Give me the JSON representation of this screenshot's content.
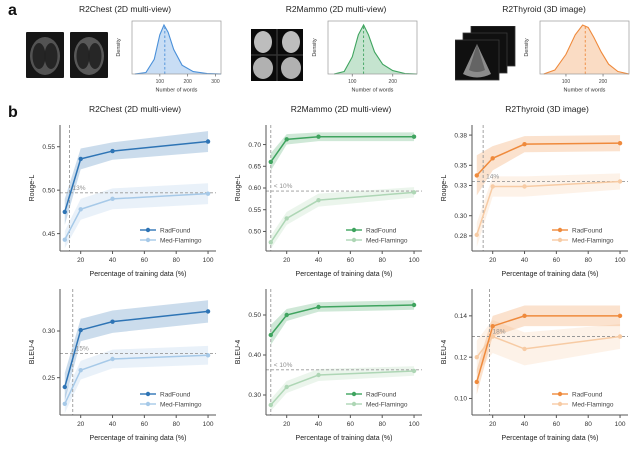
{
  "panel_labels": {
    "a": "a",
    "b": "b"
  },
  "datasets": [
    {
      "title": "R2Chest (2D multi-view)",
      "media_name": "chest-xray-thumbnails"
    },
    {
      "title": "R2Mammo (2D multi-view)",
      "media_name": "mammogram-thumbnail"
    },
    {
      "title": "R2Thyroid (3D image)",
      "media_name": "thyroid-scan-stack"
    }
  ],
  "colors": {
    "blue_dark": "#2e74b5",
    "blue_light": "#a6c9e8",
    "blue_density": "#4a90d9",
    "green_dark": "#3fa45f",
    "green_light": "#aed6b5",
    "green_density": "#3fa45f",
    "orange_dark": "#ef8a3c",
    "orange_light": "#f7cba4",
    "orange_density": "#ef8a3c",
    "ref_line": "#999999",
    "annotation": "#909090"
  },
  "chart_data": [
    {
      "id": "chest-words-density",
      "type": "area",
      "xlabel": "Number of words",
      "ylabel": "Density",
      "xlim": [
        0,
        320
      ],
      "xticks": [
        100,
        200,
        300
      ],
      "x": [
        10,
        50,
        80,
        100,
        115,
        130,
        150,
        180,
        220,
        270,
        320
      ],
      "density": [
        0,
        0.03,
        0.3,
        0.8,
        1.0,
        0.85,
        0.5,
        0.18,
        0.05,
        0.01,
        0
      ],
      "mean_line": 118,
      "color": "#4a90d9"
    },
    {
      "id": "mammo-words-density",
      "type": "area",
      "xlabel": "Number of words",
      "ylabel": "Density",
      "xlim": [
        40,
        260
      ],
      "xticks": [
        100,
        200
      ],
      "x": [
        55,
        80,
        100,
        115,
        128,
        140,
        155,
        175,
        200,
        230,
        260
      ],
      "density": [
        0,
        0.05,
        0.35,
        0.8,
        1.0,
        0.8,
        0.45,
        0.2,
        0.07,
        0.01,
        0
      ],
      "mean_line": 128,
      "color": "#3fa45f"
    },
    {
      "id": "thyroid-words-density",
      "type": "area",
      "xlabel": "Number of words",
      "ylabel": "Density",
      "xlim": [
        30,
        270
      ],
      "xticks": [
        100,
        200
      ],
      "x": [
        40,
        70,
        100,
        125,
        145,
        160,
        175,
        195,
        215,
        240,
        270
      ],
      "density": [
        0,
        0.08,
        0.4,
        0.8,
        1.0,
        0.95,
        0.75,
        0.45,
        0.2,
        0.05,
        0
      ],
      "mean_line": 152,
      "color": "#ef8a3c"
    },
    {
      "id": "rouge-chest",
      "type": "line",
      "title": "R2Chest (2D multi-view)",
      "xlabel": "Percentage of training data (%)",
      "ylabel": "Rouge-L",
      "xlim": [
        7,
        105
      ],
      "ylim": [
        0.43,
        0.575
      ],
      "xticks": [
        20,
        40,
        60,
        80,
        100
      ],
      "yticks": [
        0.45,
        0.5,
        0.55
      ],
      "x": [
        10,
        20,
        40,
        100
      ],
      "series": [
        {
          "name": "RadFound",
          "color": "#2e74b5",
          "values": [
            0.475,
            0.536,
            0.545,
            0.556
          ],
          "band": [
            0.015,
            0.012,
            0.01,
            0.012
          ]
        },
        {
          "name": "Med-Flamingo",
          "color": "#a6c9e8",
          "values": [
            0.443,
            0.478,
            0.49,
            0.496
          ],
          "band": [
            0.01,
            0.012,
            0.012,
            0.012
          ]
        }
      ],
      "hline": 0.497,
      "vline": 13,
      "annotation": "13%"
    },
    {
      "id": "rouge-mammo",
      "type": "line",
      "title": "R2Mammo (2D multi-view)",
      "xlabel": "Percentage of training data (%)",
      "ylabel": "Rouge-L",
      "xlim": [
        7,
        105
      ],
      "ylim": [
        0.455,
        0.745
      ],
      "xticks": [
        20,
        40,
        60,
        80,
        100
      ],
      "yticks": [
        0.5,
        0.55,
        0.6,
        0.65,
        0.7
      ],
      "x": [
        10,
        20,
        40,
        100
      ],
      "series": [
        {
          "name": "RadFound",
          "color": "#3fa45f",
          "values": [
            0.66,
            0.712,
            0.718,
            0.718
          ],
          "band": [
            0.02,
            0.012,
            0.01,
            0.01
          ]
        },
        {
          "name": "Med-Flamingo",
          "color": "#aed6b5",
          "values": [
            0.475,
            0.53,
            0.572,
            0.59
          ],
          "band": [
            0.015,
            0.015,
            0.015,
            0.012
          ]
        }
      ],
      "hline": 0.593,
      "vline": 10,
      "annotation": "< 10%"
    },
    {
      "id": "rouge-thyroid",
      "type": "line",
      "title": "R2Thyroid (3D image)",
      "xlabel": "Percentage of training data (%)",
      "ylabel": "Rouge-L",
      "xlim": [
        7,
        105
      ],
      "ylim": [
        0.265,
        0.39
      ],
      "xticks": [
        20,
        40,
        60,
        80,
        100
      ],
      "yticks": [
        0.28,
        0.3,
        0.33,
        0.35,
        0.38
      ],
      "x": [
        10,
        20,
        40,
        100
      ],
      "series": [
        {
          "name": "RadFound",
          "color": "#ef8a3c",
          "values": [
            0.34,
            0.357,
            0.371,
            0.372
          ],
          "band": [
            0.02,
            0.012,
            0.008,
            0.008
          ]
        },
        {
          "name": "Med-Flamingo",
          "color": "#f7cba4",
          "values": [
            0.281,
            0.329,
            0.329,
            0.334
          ],
          "band": [
            0.012,
            0.01,
            0.01,
            0.008
          ]
        }
      ],
      "hline": 0.334,
      "vline": 14,
      "annotation": "14%"
    },
    {
      "id": "bleu-chest",
      "type": "line",
      "xlabel": "Percentage of training data (%)",
      "ylabel": "BLEU-4",
      "xlim": [
        7,
        105
      ],
      "ylim": [
        0.21,
        0.345
      ],
      "xticks": [
        20,
        40,
        60,
        80,
        100
      ],
      "yticks": [
        0.25,
        0.3
      ],
      "x": [
        10,
        20,
        40,
        100
      ],
      "series": [
        {
          "name": "RadFound",
          "color": "#2e74b5",
          "values": [
            0.24,
            0.301,
            0.31,
            0.321
          ],
          "band": [
            0.015,
            0.012,
            0.012,
            0.012
          ]
        },
        {
          "name": "Med-Flamingo",
          "color": "#a6c9e8",
          "values": [
            0.222,
            0.258,
            0.27,
            0.274
          ],
          "band": [
            0.01,
            0.01,
            0.01,
            0.01
          ]
        }
      ],
      "hline": 0.276,
      "vline": 15,
      "annotation": "15%"
    },
    {
      "id": "bleu-mammo",
      "type": "line",
      "xlabel": "Percentage of training data (%)",
      "ylabel": "BLEU-4",
      "xlim": [
        7,
        105
      ],
      "ylim": [
        0.25,
        0.565
      ],
      "xticks": [
        20,
        40,
        60,
        80,
        100
      ],
      "yticks": [
        0.3,
        0.4,
        0.5
      ],
      "x": [
        10,
        20,
        40,
        100
      ],
      "series": [
        {
          "name": "RadFound",
          "color": "#3fa45f",
          "values": [
            0.45,
            0.5,
            0.52,
            0.525
          ],
          "band": [
            0.025,
            0.015,
            0.012,
            0.012
          ]
        },
        {
          "name": "Med-Flamingo",
          "color": "#aed6b5",
          "values": [
            0.275,
            0.32,
            0.35,
            0.36
          ],
          "band": [
            0.015,
            0.015,
            0.015,
            0.012
          ]
        }
      ],
      "hline": 0.363,
      "vline": 10,
      "annotation": "< 10%"
    },
    {
      "id": "bleu-thyroid",
      "type": "line",
      "xlabel": "Percentage of training data (%)",
      "ylabel": "BLEU-4",
      "xlim": [
        7,
        105
      ],
      "ylim": [
        0.092,
        0.153
      ],
      "xticks": [
        20,
        40,
        60,
        80,
        100
      ],
      "yticks": [
        0.1,
        0.12,
        0.14
      ],
      "x": [
        10,
        20,
        40,
        100
      ],
      "series": [
        {
          "name": "RadFound",
          "color": "#ef8a3c",
          "values": [
            0.108,
            0.135,
            0.14,
            0.14
          ],
          "band": [
            0.006,
            0.005,
            0.005,
            0.005
          ]
        },
        {
          "name": "Med-Flamingo",
          "color": "#f7cba4",
          "values": [
            0.12,
            0.13,
            0.124,
            0.13
          ],
          "band": [
            0.008,
            0.008,
            0.008,
            0.006
          ]
        }
      ],
      "hline": 0.13,
      "vline": 18,
      "annotation": "18%"
    }
  ]
}
